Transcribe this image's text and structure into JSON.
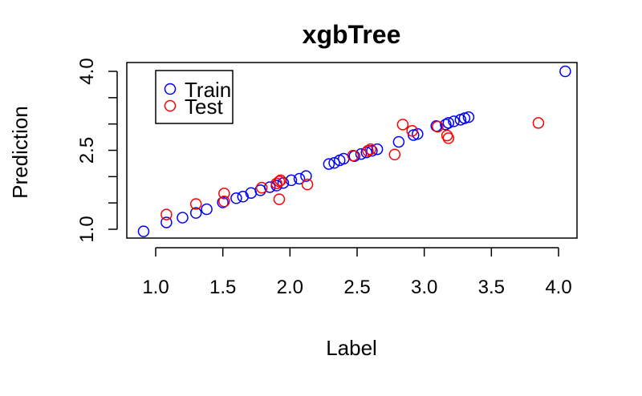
{
  "chart_data": {
    "type": "scatter",
    "title": "xgbTree",
    "xlabel": "Label",
    "ylabel": "Prediction",
    "xlim": [
      0.8,
      4.15
    ],
    "ylim": [
      0.9,
      4.1
    ],
    "xticks": [
      1.0,
      1.5,
      2.0,
      2.5,
      3.0,
      3.5,
      4.0
    ],
    "xtick_labels": [
      "1.0",
      "1.5",
      "2.0",
      "2.5",
      "3.0",
      "3.5",
      "4.0"
    ],
    "yticks": [
      1.0,
      1.5,
      2.0,
      2.5,
      3.0,
      3.5,
      4.0
    ],
    "ytick_labels": [
      "1.0",
      "",
      "",
      "2.5",
      "",
      "",
      "4.0"
    ],
    "grid": false,
    "legend_position": "top-left",
    "series": [
      {
        "name": "Train",
        "color": "#0000ff",
        "marker": "open-circle",
        "points": [
          [
            0.91,
            0.96
          ],
          [
            1.08,
            1.13
          ],
          [
            1.2,
            1.22
          ],
          [
            1.3,
            1.31
          ],
          [
            1.38,
            1.38
          ],
          [
            1.5,
            1.51
          ],
          [
            1.6,
            1.59
          ],
          [
            1.65,
            1.62
          ],
          [
            1.71,
            1.69
          ],
          [
            1.78,
            1.74
          ],
          [
            1.85,
            1.8
          ],
          [
            1.9,
            1.83
          ],
          [
            1.95,
            1.88
          ],
          [
            2.01,
            1.93
          ],
          [
            2.07,
            1.96
          ],
          [
            2.12,
            2.01
          ],
          [
            2.29,
            2.24
          ],
          [
            2.33,
            2.26
          ],
          [
            2.37,
            2.31
          ],
          [
            2.4,
            2.34
          ],
          [
            2.48,
            2.39
          ],
          [
            2.53,
            2.43
          ],
          [
            2.57,
            2.46
          ],
          [
            2.61,
            2.49
          ],
          [
            2.65,
            2.52
          ],
          [
            2.81,
            2.66
          ],
          [
            2.92,
            2.79
          ],
          [
            2.95,
            2.81
          ],
          [
            3.09,
            2.96
          ],
          [
            3.16,
            2.99
          ],
          [
            3.18,
            3.02
          ],
          [
            3.22,
            3.05
          ],
          [
            3.27,
            3.08
          ],
          [
            3.3,
            3.11
          ],
          [
            3.33,
            3.13
          ],
          [
            4.05,
            4.0
          ]
        ]
      },
      {
        "name": "Test",
        "color": "#ff0000",
        "marker": "open-circle",
        "points": [
          [
            1.08,
            1.28
          ],
          [
            1.3,
            1.48
          ],
          [
            1.51,
            1.68
          ],
          [
            1.51,
            1.53
          ],
          [
            1.79,
            1.79
          ],
          [
            1.9,
            1.87
          ],
          [
            1.92,
            1.91
          ],
          [
            1.93,
            1.93
          ],
          [
            1.92,
            1.57
          ],
          [
            2.13,
            1.85
          ],
          [
            2.47,
            2.4
          ],
          [
            2.58,
            2.49
          ],
          [
            2.6,
            2.52
          ],
          [
            2.78,
            2.42
          ],
          [
            2.84,
            2.99
          ],
          [
            2.91,
            2.87
          ],
          [
            3.1,
            2.95
          ],
          [
            3.17,
            2.78
          ],
          [
            3.18,
            2.73
          ],
          [
            3.85,
            3.02
          ]
        ]
      }
    ],
    "legend": [
      "Train",
      "Test"
    ]
  }
}
